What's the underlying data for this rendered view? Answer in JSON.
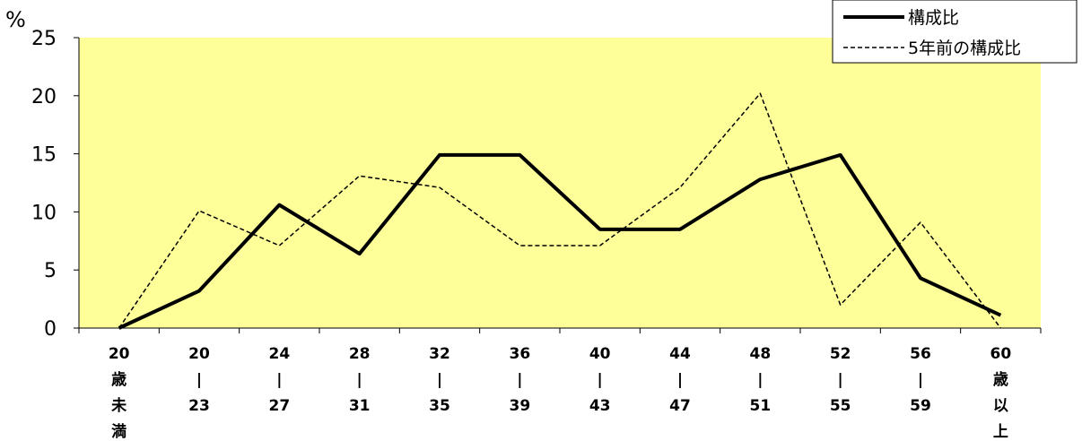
{
  "chart_data": {
    "type": "line",
    "title": "",
    "ylabel": "%",
    "xlabel": "",
    "ylim": [
      0,
      25
    ],
    "yticks": [
      "0",
      "5",
      "10",
      "15",
      "20",
      "25"
    ],
    "grid": false,
    "background": "#ffff99",
    "legend_position": "top-right",
    "categories": [
      [
        "20",
        "歳",
        "未",
        "満"
      ],
      [
        "20",
        "|",
        "23"
      ],
      [
        "24",
        "|",
        "27"
      ],
      [
        "28",
        "|",
        "31"
      ],
      [
        "32",
        "|",
        "35"
      ],
      [
        "36",
        "|",
        "39"
      ],
      [
        "40",
        "|",
        "43"
      ],
      [
        "44",
        "|",
        "47"
      ],
      [
        "48",
        "|",
        "51"
      ],
      [
        "52",
        "|",
        "55"
      ],
      [
        "56",
        "|",
        "59"
      ],
      [
        "60",
        "歳",
        "以",
        "上"
      ]
    ],
    "series": [
      {
        "name": "構成比",
        "style": "solid",
        "color": "#000000",
        "values": [
          0,
          3.2,
          10.6,
          6.4,
          14.9,
          14.9,
          8.5,
          8.5,
          12.8,
          14.9,
          4.3,
          1.1
        ]
      },
      {
        "name": "5年前の構成比",
        "style": "dashed",
        "color": "#000000",
        "values": [
          0,
          10.1,
          7.1,
          13.1,
          12.1,
          7.1,
          7.1,
          12.1,
          20.2,
          2.0,
          9.1,
          0
        ]
      }
    ]
  }
}
